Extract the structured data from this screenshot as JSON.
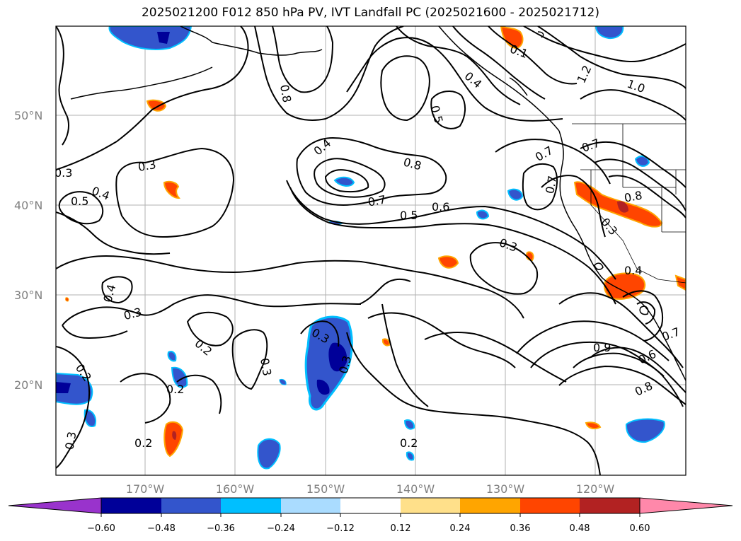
{
  "title": "2025021200 F012 850 hPa PV, IVT Landfall PC (2025021600 - 2025021712)",
  "map": {
    "lat_labels": [
      "50°N",
      "40°N",
      "30°N",
      "20°N"
    ],
    "lon_labels": [
      "170°W",
      "160°W",
      "150°W",
      "140°W",
      "130°W",
      "120°W"
    ],
    "contour_labels": [
      "0.3",
      "0.5",
      "0.4",
      "0.3",
      "0.4",
      "0.3",
      "0.8",
      "0.4",
      "0.8",
      "0.5",
      "0.7",
      "0.5",
      "0.6",
      "0.3",
      "0.2",
      "0.3",
      "0.2",
      "0.3",
      "0.3",
      "0.2",
      "0.2",
      "0.2",
      "0.3",
      "0.1",
      "1.2",
      "1.0",
      "0.7",
      "0.7",
      "0.7",
      "0.8",
      "0.3",
      "0.4",
      "0.9",
      "0.6",
      "0.7",
      "0.8",
      "0.4",
      "0.3"
    ],
    "pv_shading_colors": {
      "neg_strong": "#0000a0",
      "neg_med": "#3355cc",
      "neg_light": "#00bfff",
      "pos_light": "#ffa500",
      "pos_strong": "#ff4500"
    }
  },
  "colorbar": {
    "ticks": [
      "−0.60",
      "−0.48",
      "−0.36",
      "−0.24",
      "−0.12",
      "0.12",
      "0.24",
      "0.36",
      "0.48",
      "0.60"
    ],
    "colors": [
      "#9933cc",
      "#000099",
      "#3355cc",
      "#00bfff",
      "#aadcff",
      "#ffffff",
      "#ffe08a",
      "#ffa500",
      "#ff4500",
      "#b22222",
      "#ff88aa"
    ]
  }
}
